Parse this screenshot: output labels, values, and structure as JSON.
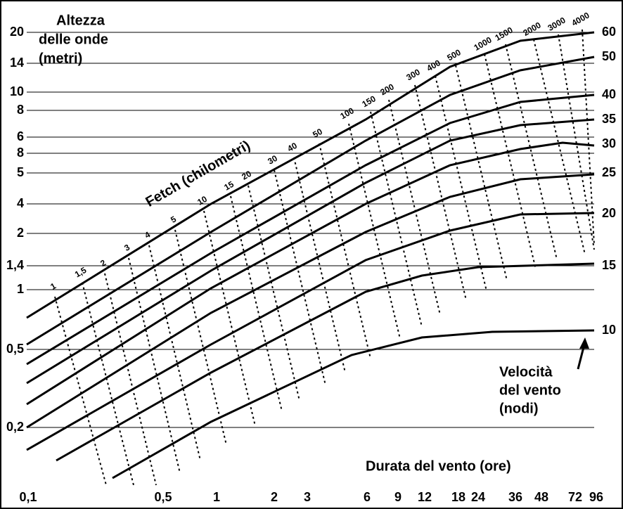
{
  "title_lines": [
    "Altezza",
    "delle onde",
    "(metri)"
  ],
  "height_labels": [
    "20",
    "14",
    "10",
    "8",
    "6",
    "8",
    "5",
    "4",
    "2",
    "1,4",
    "1",
    "0,5",
    "0,2"
  ],
  "speed_labels": [
    "60",
    "50",
    "40",
    "35",
    "30",
    "25",
    "20",
    "15",
    "10"
  ],
  "duration_labels": [
    "0,1",
    "0,5",
    "1",
    "2",
    "3",
    "6",
    "9",
    "12",
    "18",
    "24",
    "36",
    "48",
    "72",
    "96"
  ],
  "duration_title": "Durata del vento (ore)",
  "fetch_title": "Fetch (chilometri)",
  "fetch_labels": [
    "1",
    "1,5",
    "2",
    "3",
    "4",
    "5",
    "10",
    "15",
    "20",
    "30",
    "40",
    "50",
    "100",
    "150",
    "200",
    "300",
    "400",
    "500",
    "1000",
    "1500",
    "2000",
    "3000",
    "4000"
  ],
  "speed_title_lines": [
    "Velocità",
    "del vento",
    "(nodi)"
  ]
}
